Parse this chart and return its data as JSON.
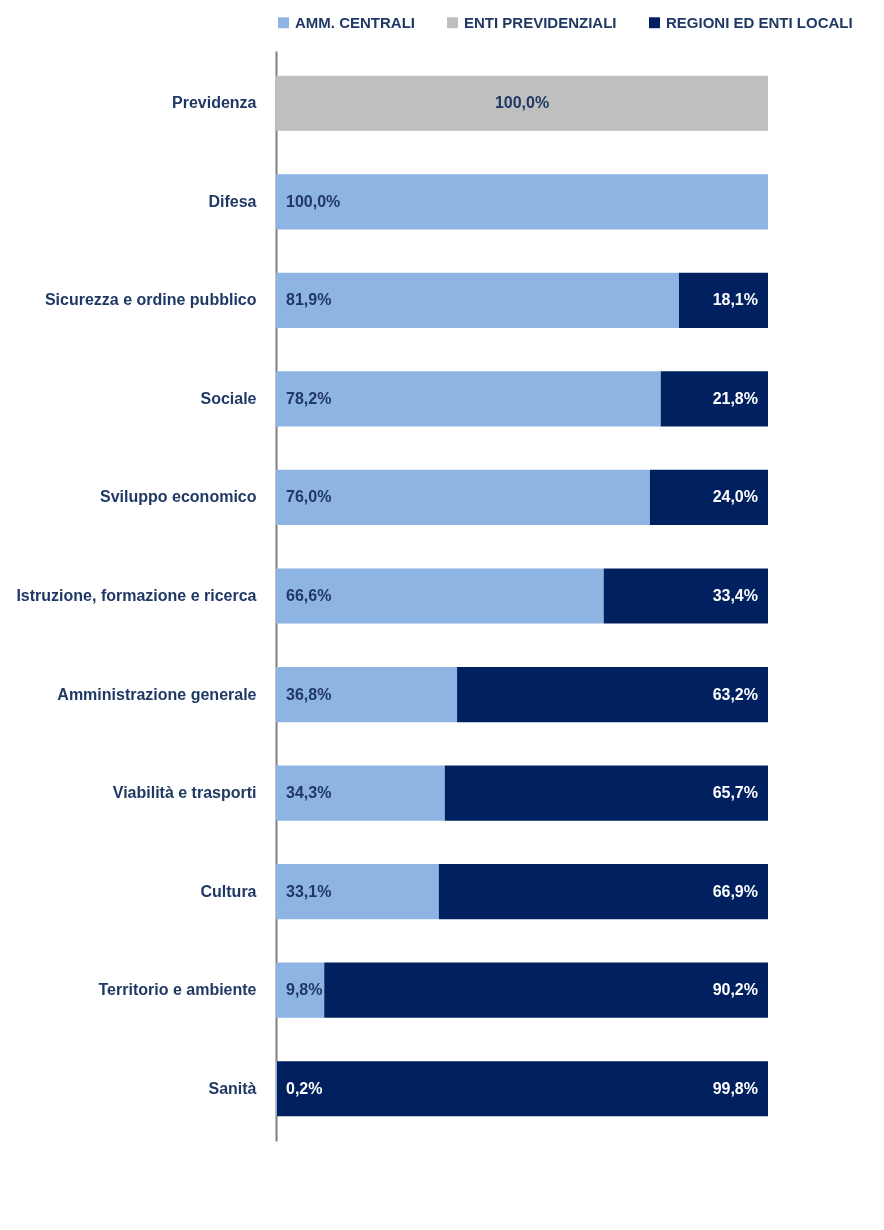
{
  "chart_data": {
    "type": "bar",
    "orientation": "horizontal",
    "stacked": true,
    "legend": "top",
    "tick_labels": "y",
    "xlim": [
      0,
      100
    ],
    "categories": [
      "Previdenza",
      "Difesa",
      "Sicurezza e ordine pubblico",
      "Sociale",
      "Sviluppo economico",
      "Istruzione, formazione e ricerca",
      "Amministrazione generale",
      "Viabilità e trasporti",
      "Cultura",
      "Territorio e ambiente",
      "Sanità"
    ],
    "series": [
      {
        "name": "AMM. CENTRALI",
        "color": "#8eb4e3",
        "values": [
          null,
          100,
          81.9,
          78.2,
          76.0,
          66.6,
          36.8,
          34.3,
          33.1,
          9.8,
          0.2
        ],
        "value_labels": [
          null,
          "100,0%",
          "81,9%",
          "78,2%",
          "76,0%",
          "66,6%",
          "36,8%",
          "34,3%",
          "33,1%",
          "9,8%",
          "0,2%"
        ]
      },
      {
        "name": "ENTI PREVIDENZIALI",
        "color": "#bfbfbf",
        "values": [
          100,
          null,
          null,
          null,
          null,
          null,
          null,
          null,
          null,
          null,
          null
        ],
        "value_labels": [
          "100,0%",
          null,
          null,
          null,
          null,
          null,
          null,
          null,
          null,
          null,
          null
        ]
      },
      {
        "name": "REGIONI ED ENTI LOCALI",
        "color": "#002060",
        "values": [
          null,
          null,
          18.1,
          21.8,
          24.0,
          33.4,
          63.2,
          65.7,
          66.9,
          90.2,
          99.8
        ],
        "value_labels": [
          null,
          null,
          "18,1%",
          "21,8%",
          "24,0%",
          "33,4%",
          "63,2%",
          "65,7%",
          "66,9%",
          "90,2%",
          "99,8%"
        ]
      }
    ]
  }
}
